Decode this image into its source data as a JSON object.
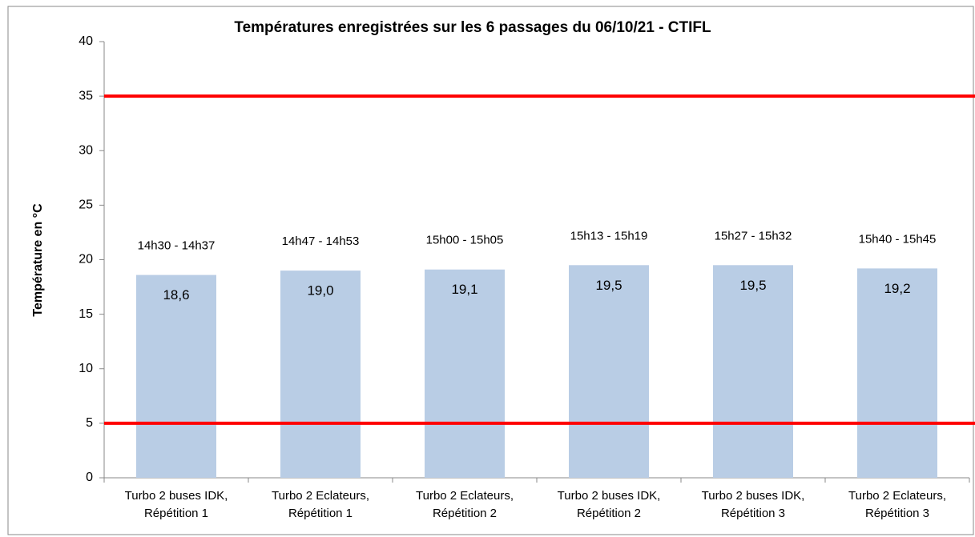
{
  "chart_data": {
    "type": "bar",
    "title": "Températures enregistrées sur les 6 passages du 06/10/21 - CTIFL",
    "y_label": "Température en °C",
    "categories": [
      "Turbo 2 buses IDK, Répétition 1",
      "Turbo 2 Eclateurs, Répétition 1",
      "Turbo 2 Eclateurs, Répétition 2",
      "Turbo 2 buses IDK, Répétition 2",
      "Turbo 2 buses IDK, Répétition 3",
      "Turbo 2 Eclateurs, Répétition 3"
    ],
    "values": [
      18.6,
      19.0,
      19.1,
      19.5,
      19.5,
      19.2
    ],
    "value_labels": [
      "18,6",
      "19,0",
      "19,1",
      "19,5",
      "19,5",
      "19,2"
    ],
    "annotations": [
      "14h30 - 14h37",
      "14h47 - 14h53",
      "15h00 - 15h05",
      "15h13 - 15h19",
      "15h27 - 15h32",
      "15h40 - 15h45"
    ],
    "color": "#b9cde5",
    "reference_lines": [
      {
        "value": 35,
        "color": "#ff0000"
      },
      {
        "value": 5,
        "color": "#ff0000"
      }
    ],
    "ylim": [
      0,
      40
    ],
    "yticks": [
      0,
      5,
      10,
      15,
      20,
      25,
      30,
      35,
      40
    ],
    "grid": false
  }
}
